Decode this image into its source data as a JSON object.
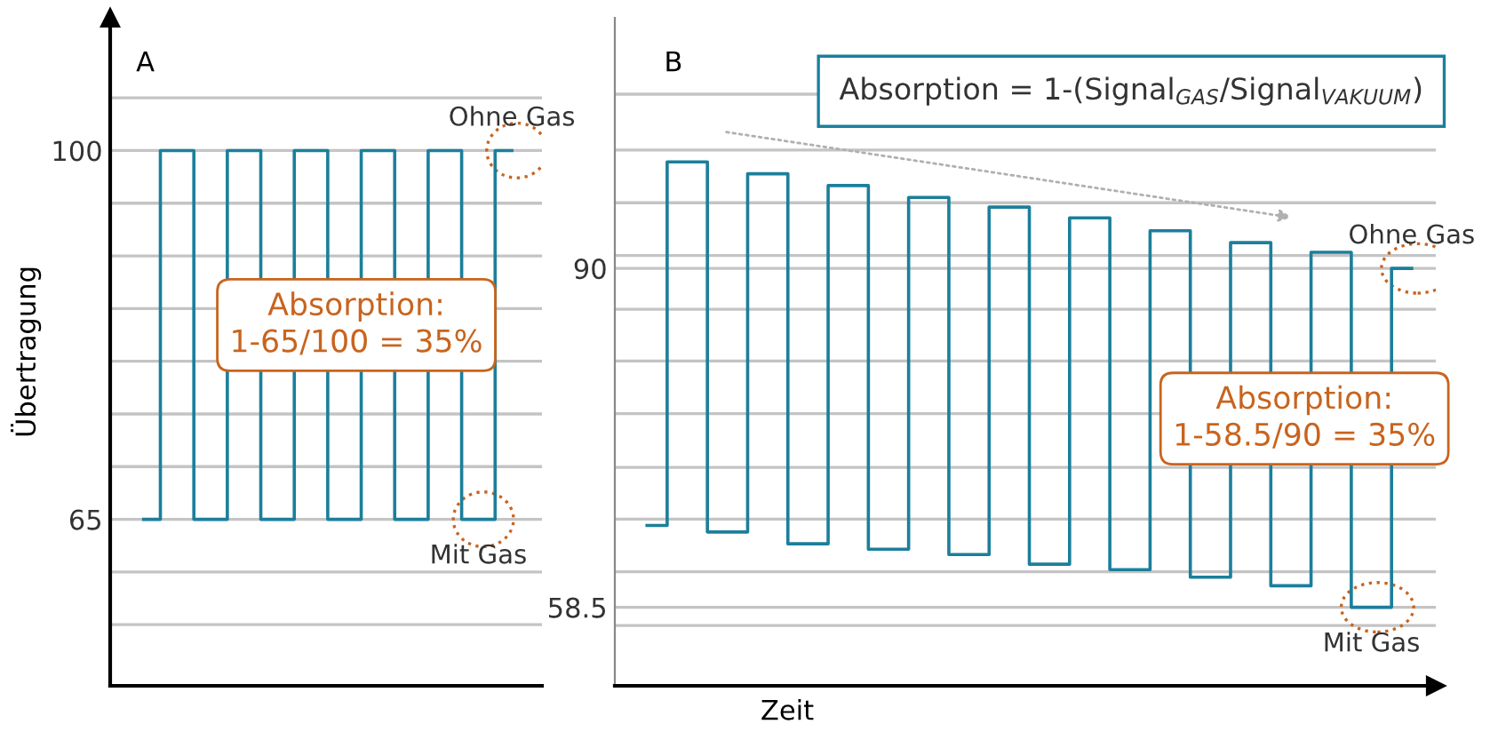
{
  "chart_data": [
    {
      "type": "step",
      "title": "A",
      "ylabel": "Übertragung",
      "categories": [
        null,
        null,
        null,
        null,
        null,
        null,
        null,
        null,
        null,
        null,
        null,
        null
      ],
      "series": [
        {
          "color": "#1b7f9b",
          "values": [
            65,
            100,
            65,
            100,
            65,
            100,
            65,
            100,
            65,
            100,
            65,
            100
          ]
        }
      ],
      "ylim": [
        49.2,
        112.6
      ],
      "yticks": [
        {
          "value": 55,
          "label": null
        },
        {
          "value": 60,
          "label": null
        },
        65,
        {
          "value": 70,
          "label": null
        },
        {
          "value": 75,
          "label": null
        },
        {
          "value": 80,
          "label": null
        },
        {
          "value": 85,
          "label": null
        },
        {
          "value": 90,
          "label": null
        },
        {
          "value": 95,
          "label": null
        },
        100,
        {
          "value": 105,
          "label": null
        }
      ],
      "grid": "y",
      "line_style": "solid",
      "marker": "none",
      "annotations": [
        "Ohne Gas",
        "Mit Gas",
        "Absorption:\n1-65/100 = 35%"
      ]
    },
    {
      "type": "step",
      "title": "B",
      "xlabel": "Zeit",
      "categories": [
        null,
        null,
        null,
        null,
        null,
        null,
        null,
        null,
        null,
        null,
        null,
        null,
        null,
        null,
        null,
        null,
        null,
        null,
        null,
        null
      ],
      "series": [
        {
          "color": "#1b7f9b",
          "values": [
            66.1,
            99.9,
            65.5,
            98.8,
            64.4,
            97.7,
            63.9,
            96.6,
            63.4,
            95.7,
            62.5,
            94.7,
            62.0,
            93.5,
            61.3,
            92.4,
            60.5,
            91.5,
            58.5,
            90
          ]
        }
      ],
      "ylim": [
        51.2,
        113.3
      ],
      "yticks": [
        {
          "value": 56.8,
          "label": null
        },
        58.5,
        {
          "value": 61.8,
          "label": null
        },
        {
          "value": 66.7,
          "label": null
        },
        {
          "value": 71.5,
          "label": null
        },
        {
          "value": 76.5,
          "label": null
        },
        {
          "value": 81.4,
          "label": null
        },
        {
          "value": 86.2,
          "label": null
        },
        90,
        {
          "value": 91.2,
          "label": null
        },
        {
          "value": 96.1,
          "label": null
        },
        {
          "value": 101.0,
          "label": null
        },
        {
          "value": 106.2,
          "label": null
        }
      ],
      "grid": "y",
      "line_style": "solid",
      "marker": "none",
      "annotations": [
        "Ohne Gas",
        "Mit Gas",
        "Absorption = 1-(Signal$_{GAS}$/Signal$_{VAKUUM}$)",
        "Absorption:\n1-58.5/90 = 35%"
      ]
    }
  ]
}
